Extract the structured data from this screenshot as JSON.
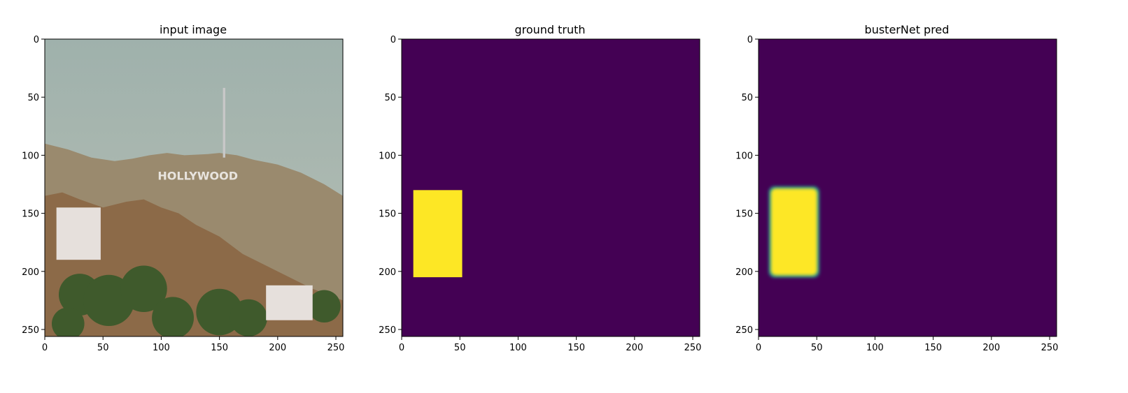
{
  "figure": {
    "panels": [
      {
        "title": "input image"
      },
      {
        "title": "ground truth"
      },
      {
        "title": "busterNet pred"
      }
    ]
  },
  "colors": {
    "background_mask": "#440154",
    "foreground_mask": "#fde725",
    "edge_teal": "#21918c",
    "sky": "#aab8b4",
    "hill_far": "#9a8a6e",
    "hill_near": "#8c6a48",
    "tree": "#3f5a2c",
    "building": "#e6e0dc"
  },
  "chart_data": [
    {
      "type": "heatmap",
      "title": "input image",
      "content": "photograph of hills with HOLLYWOOD sign, radio tower and white buildings",
      "sign_text": "HOLLYWOOD",
      "xlim": [
        0,
        256
      ],
      "ylim": [
        256,
        0
      ],
      "xticks": [
        0,
        50,
        100,
        150,
        200,
        250
      ],
      "yticks": [
        0,
        50,
        100,
        150,
        200,
        250
      ]
    },
    {
      "type": "heatmap",
      "title": "ground truth",
      "xlim": [
        0,
        256
      ],
      "ylim": [
        256,
        0
      ],
      "xticks": [
        0,
        50,
        100,
        150,
        200,
        250
      ],
      "yticks": [
        0,
        50,
        100,
        150,
        200,
        250
      ],
      "mask_region": {
        "x": [
          10,
          52
        ],
        "y": [
          130,
          205
        ],
        "value": 1
      },
      "background_value": 0
    },
    {
      "type": "heatmap",
      "title": "busterNet pred",
      "xlim": [
        0,
        256
      ],
      "ylim": [
        256,
        0
      ],
      "xticks": [
        0,
        50,
        100,
        150,
        200,
        250
      ],
      "yticks": [
        0,
        50,
        100,
        150,
        200,
        250
      ],
      "mask_region": {
        "x": [
          10,
          51
        ],
        "y": [
          128,
          204
        ],
        "value": 1
      },
      "background_value": 0
    }
  ]
}
